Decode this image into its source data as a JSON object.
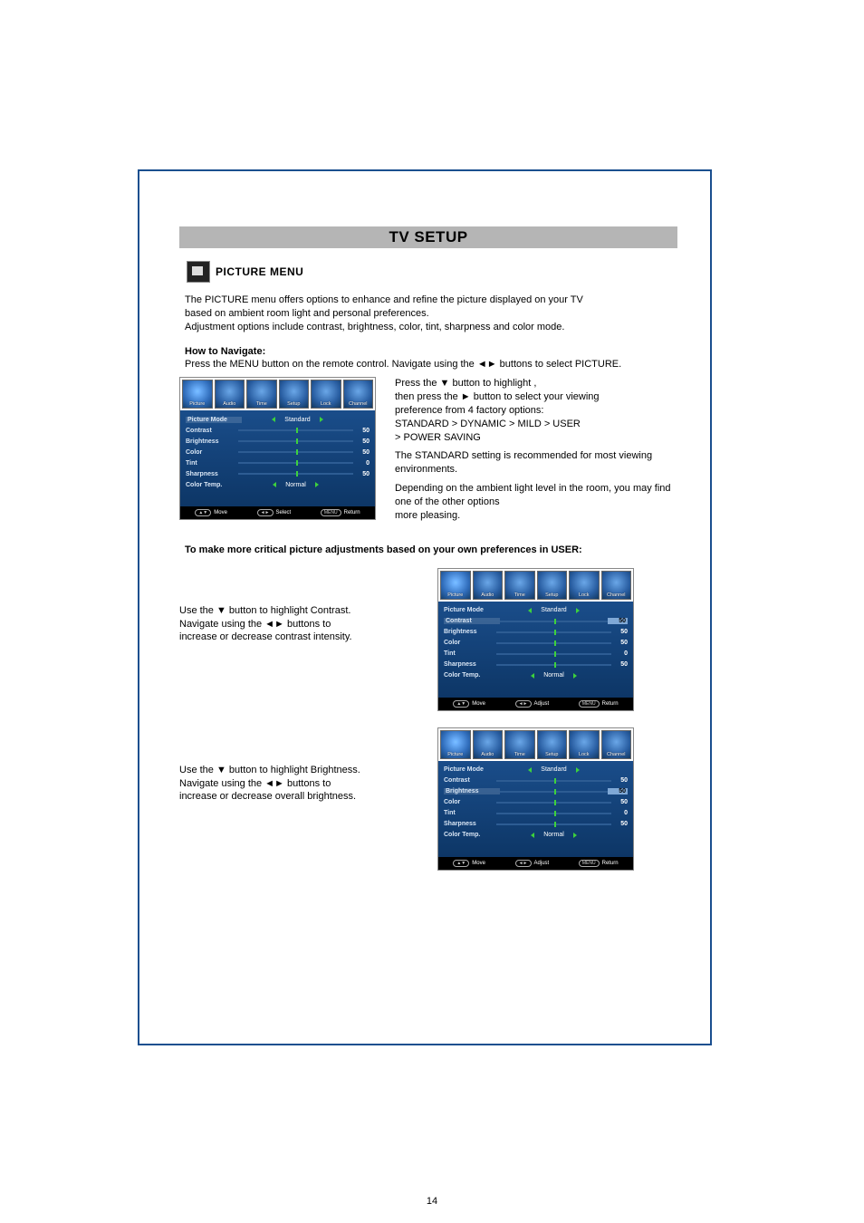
{
  "page": {
    "title": "TV SETUP",
    "section_title": "PICTURE MENU",
    "page_number": "14",
    "intro_line1": "The PICTURE menu offers options to enhance and refine the picture displayed on your TV",
    "intro_line2": "based on ambient room light and personal preferences.",
    "intro_line3": "Adjustment options include contrast, brightness, color, tint, sharpness and color mode.",
    "howto_heading": "How to Navigate:",
    "howto_text": "Press the MENU button on the remote control. Navigate using the ◄► buttons to select PICTURE.",
    "note": "To make more critical picture adjustments based on your own preferences in USER:",
    "desc1_l1": "Press the ▼ button to highlight ,",
    "desc1_l2": "then press the ► button to select your viewing",
    "desc1_l3": "preference from 4 factory options:",
    "desc1_l4": "STANDARD > DYNAMIC > MILD > USER",
    "desc1_l5": "> POWER SAVING",
    "desc1_p2": "The STANDARD setting is recommended for most viewing environments.",
    "desc1_p3a": "Depending on the ambient light level in the room, you may find one of the other options",
    "desc1_p3b": "more pleasing.",
    "instr2_l1": "Use the ▼ button to highlight Contrast.",
    "instr2_l2": "Navigate using the ◄► buttons to",
    "instr2_l3": "increase or decrease contrast intensity.",
    "instr3_l1": "Use the  ▼ button to highlight Brightness.",
    "instr3_l2": "Navigate using the ◄► buttons to",
    "instr3_l3": "increase or decrease overall brightness."
  },
  "menu": {
    "tabs": [
      "Picture",
      "Audio",
      "Time",
      "Setup",
      "Lock",
      "Channel"
    ],
    "rows": {
      "picture_mode": {
        "label": "Picture Mode",
        "value": "Standard",
        "type": "enum"
      },
      "contrast": {
        "label": "Contrast",
        "value": "50",
        "type": "slider",
        "pct": 50
      },
      "brightness": {
        "label": "Brightness",
        "value": "50",
        "type": "slider",
        "pct": 50
      },
      "color": {
        "label": "Color",
        "value": "50",
        "type": "slider",
        "pct": 50
      },
      "tint": {
        "label": "Tint",
        "value": "0",
        "type": "slider",
        "pct": 50
      },
      "sharpness": {
        "label": "Sharpness",
        "value": "50",
        "type": "slider",
        "pct": 50
      },
      "color_temp": {
        "label": "Color Temp.",
        "value": "Normal",
        "type": "enum"
      }
    },
    "footer": {
      "move_icon": "▲▼",
      "move": "Move",
      "select_icon": "◄►",
      "select": "Select",
      "adjust": "Adjust",
      "menu_pill": "MENU",
      "return": "Return"
    }
  },
  "colors": {
    "page_border": "#1a4f8f",
    "title_bg": "#b5b5b5",
    "menu_bg_top": "#1a4d8a",
    "menu_bg_bottom": "#0d3666",
    "slider_track": "#2d5c93",
    "slider_thumb": "#3dd13d",
    "arrow": "#3dd13d",
    "tab_grad_inner": "#6aa7e8",
    "tab_grad_mid": "#2a5fa3",
    "tab_grad_outer": "#123861"
  }
}
